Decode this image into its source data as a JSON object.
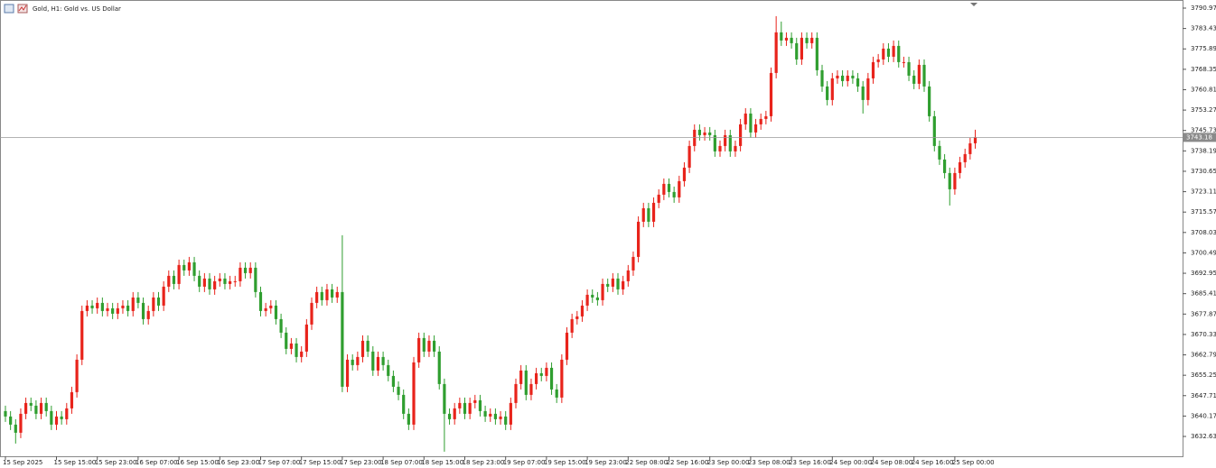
{
  "chart_data": {
    "type": "candlestick",
    "title": "Gold, H1:  Gold vs. US Dollar",
    "up_color": "#e8231b",
    "down_color": "#2f9e2f",
    "ylim": [
      3625.3,
      3793.97
    ],
    "yticks": [
      3790.97,
      3783.43,
      3775.89,
      3768.35,
      3760.81,
      3753.27,
      3745.73,
      3738.19,
      3730.65,
      3723.11,
      3715.57,
      3708.03,
      3700.49,
      3692.95,
      3685.41,
      3677.87,
      3670.33,
      3662.79,
      3655.25,
      3647.71,
      3640.17,
      3632.63
    ],
    "categories": [
      "15 Sep 2025",
      null,
      null,
      null,
      null,
      null,
      null,
      null,
      null,
      null,
      "15 Sep 15:00",
      null,
      null,
      null,
      null,
      null,
      null,
      null,
      "15 Sep 23:00",
      null,
      null,
      null,
      null,
      null,
      null,
      null,
      "16 Sep 07:00",
      null,
      null,
      null,
      null,
      null,
      null,
      null,
      "16 Sep 15:00",
      null,
      null,
      null,
      null,
      null,
      null,
      null,
      "16 Sep 23:00",
      null,
      null,
      null,
      null,
      null,
      null,
      null,
      "17 Sep 07:00",
      null,
      null,
      null,
      null,
      null,
      null,
      null,
      "17 Sep 15:00",
      null,
      null,
      null,
      null,
      null,
      null,
      null,
      "17 Sep 23:00",
      null,
      null,
      null,
      null,
      null,
      null,
      null,
      "18 Sep 07:00",
      null,
      null,
      null,
      null,
      null,
      null,
      null,
      "18 Sep 15:00",
      null,
      null,
      null,
      null,
      null,
      null,
      null,
      "18 Sep 23:00",
      null,
      null,
      null,
      null,
      null,
      null,
      null,
      "19 Sep 07:00",
      null,
      null,
      null,
      null,
      null,
      null,
      null,
      "19 Sep 15:00",
      null,
      null,
      null,
      null,
      null,
      null,
      null,
      "19 Sep 23:00",
      null,
      null,
      null,
      null,
      null,
      null,
      null,
      "22 Sep 08:00",
      null,
      null,
      null,
      null,
      null,
      null,
      null,
      "22 Sep 16:00",
      null,
      null,
      null,
      null,
      null,
      null,
      null,
      "23 Sep 00:00",
      null,
      null,
      null,
      null,
      null,
      null,
      null,
      "23 Sep 08:00",
      null,
      null,
      null,
      null,
      null,
      null,
      null,
      "23 Sep 16:00",
      null,
      null,
      null,
      null,
      null,
      null,
      null,
      "24 Sep 00:00",
      null,
      null,
      null,
      null,
      null,
      null,
      null,
      "24 Sep 08:00",
      null,
      null,
      null,
      null,
      null,
      null,
      null,
      "24 Sep 16:00",
      null,
      null,
      null,
      null,
      null,
      null,
      null,
      "25 Sep 00:00",
      null,
      null,
      null,
      null
    ],
    "open": [
      3642,
      3640,
      3637,
      3634,
      3641,
      3645,
      3644,
      3641,
      3645,
      3642,
      3637,
      3640,
      3639,
      3643,
      3649,
      3661,
      3679,
      3681,
      3680,
      3682,
      3679,
      3680,
      3678,
      3680,
      3681,
      3679,
      3684,
      3682,
      3676,
      3679,
      3684,
      3681,
      3688,
      3692,
      3689,
      3696,
      3694,
      3697,
      3692,
      3688,
      3691,
      3687,
      3690,
      3691,
      3689,
      3690,
      3690,
      3695,
      3693,
      3695,
      3686,
      3679,
      3680,
      3681,
      3676,
      3671,
      3665,
      3667,
      3662,
      3664,
      3674,
      3682,
      3686,
      3683,
      3687,
      3684,
      3686,
      3651,
      3661,
      3659,
      3662,
      3668,
      3664,
      3657,
      3662,
      3659,
      3655,
      3651,
      3648,
      3641,
      3637,
      3660,
      3669,
      3664,
      3668,
      3664,
      3652,
      3641,
      3639,
      3643,
      3645,
      3641,
      3645,
      3646,
      3642,
      3640,
      3641,
      3639,
      3640,
      3637,
      3645,
      3652,
      3657,
      3648,
      3652,
      3656,
      3655,
      3658,
      3650,
      3647,
      3661,
      3671,
      3676,
      3677,
      3681,
      3685,
      3684,
      3683,
      3689,
      3688,
      3691,
      3687,
      3690,
      3694,
      3699,
      3712,
      3717,
      3712,
      3719,
      3722,
      3726,
      3723,
      3721,
      3727,
      3732,
      3740,
      3746,
      3744,
      3745,
      3744,
      3738,
      3740,
      3744,
      3738,
      3740,
      3748,
      3752,
      3745,
      3748,
      3750,
      3751,
      3767,
      3782,
      3779,
      3780,
      3778,
      3772,
      3780,
      3778,
      3780,
      3768,
      3762,
      3757,
      3765,
      3766,
      3764,
      3766,
      3765,
      3762,
      3757,
      3765,
      3771,
      3772,
      3776,
      3773,
      3777,
      3771,
      3771,
      3766,
      3763,
      3770,
      3762,
      3751,
      3740,
      3735,
      3730,
      3724,
      3730,
      3734,
      3737,
      3741
    ],
    "high": [
      3644,
      3642,
      3639,
      3643,
      3647,
      3647,
      3646,
      3647,
      3647,
      3644,
      3642,
      3642,
      3645,
      3651,
      3663,
      3681,
      3683,
      3683,
      3684,
      3684,
      3682,
      3682,
      3682,
      3683,
      3683,
      3686,
      3686,
      3684,
      3681,
      3686,
      3686,
      3690,
      3694,
      3694,
      3698,
      3698,
      3699,
      3699,
      3694,
      3693,
      3693,
      3692,
      3693,
      3693,
      3692,
      3692,
      3697,
      3697,
      3697,
      3697,
      3688,
      3682,
      3683,
      3683,
      3678,
      3673,
      3669,
      3669,
      3666,
      3676,
      3684,
      3688,
      3688,
      3689,
      3689,
      3688,
      3707,
      3663,
      3663,
      3664,
      3670,
      3670,
      3666,
      3664,
      3664,
      3661,
      3657,
      3653,
      3650,
      3643,
      3662,
      3671,
      3671,
      3670,
      3670,
      3666,
      3654,
      3643,
      3645,
      3647,
      3647,
      3647,
      3648,
      3648,
      3644,
      3643,
      3643,
      3642,
      3642,
      3647,
      3654,
      3659,
      3659,
      3654,
      3658,
      3658,
      3660,
      3660,
      3652,
      3663,
      3673,
      3678,
      3679,
      3683,
      3687,
      3687,
      3686,
      3691,
      3691,
      3693,
      3693,
      3692,
      3696,
      3701,
      3714,
      3719,
      3719,
      3721,
      3724,
      3728,
      3728,
      3725,
      3729,
      3734,
      3742,
      3748,
      3748,
      3747,
      3747,
      3746,
      3742,
      3746,
      3746,
      3742,
      3750,
      3754,
      3754,
      3750,
      3752,
      3753,
      3769,
      3788,
      3786,
      3782,
      3782,
      3780,
      3782,
      3782,
      3782,
      3782,
      3770,
      3764,
      3767,
      3768,
      3768,
      3768,
      3768,
      3767,
      3764,
      3767,
      3773,
      3774,
      3778,
      3778,
      3779,
      3779,
      3773,
      3773,
      3768,
      3772,
      3772,
      3764,
      3753,
      3742,
      3737,
      3732,
      3732,
      3736,
      3739,
      3743,
      3746
    ],
    "low": [
      3638,
      3635,
      3630,
      3632,
      3639,
      3642,
      3639,
      3639,
      3640,
      3635,
      3635,
      3637,
      3637,
      3641,
      3647,
      3659,
      3677,
      3678,
      3678,
      3677,
      3677,
      3676,
      3676,
      3678,
      3677,
      3677,
      3680,
      3674,
      3674,
      3677,
      3679,
      3679,
      3686,
      3687,
      3687,
      3692,
      3692,
      3690,
      3686,
      3686,
      3685,
      3685,
      3688,
      3687,
      3687,
      3688,
      3688,
      3691,
      3691,
      3684,
      3677,
      3677,
      3678,
      3674,
      3669,
      3663,
      3663,
      3660,
      3660,
      3662,
      3672,
      3680,
      3681,
      3681,
      3682,
      3682,
      3649,
      3649,
      3657,
      3657,
      3660,
      3662,
      3655,
      3655,
      3657,
      3653,
      3649,
      3646,
      3639,
      3635,
      3635,
      3658,
      3662,
      3662,
      3662,
      3650,
      3627,
      3637,
      3637,
      3641,
      3639,
      3639,
      3643,
      3640,
      3638,
      3638,
      3637,
      3637,
      3635,
      3635,
      3643,
      3650,
      3646,
      3646,
      3650,
      3653,
      3653,
      3648,
      3645,
      3645,
      3659,
      3669,
      3674,
      3675,
      3679,
      3682,
      3681,
      3681,
      3686,
      3686,
      3685,
      3685,
      3688,
      3692,
      3697,
      3710,
      3710,
      3710,
      3717,
      3720,
      3721,
      3719,
      3719,
      3725,
      3730,
      3738,
      3742,
      3742,
      3742,
      3736,
      3736,
      3738,
      3736,
      3736,
      3738,
      3746,
      3743,
      3743,
      3746,
      3748,
      3749,
      3765,
      3777,
      3777,
      3776,
      3770,
      3770,
      3776,
      3776,
      3766,
      3760,
      3755,
      3755,
      3763,
      3762,
      3762,
      3763,
      3760,
      3752,
      3755,
      3763,
      3769,
      3770,
      3771,
      3771,
      3769,
      3769,
      3764,
      3761,
      3761,
      3760,
      3749,
      3738,
      3733,
      3728,
      3718,
      3722,
      3728,
      3732,
      3735,
      3739
    ],
    "close": [
      3640,
      3637,
      3634,
      3641,
      3645,
      3644,
      3641,
      3645,
      3642,
      3637,
      3640,
      3639,
      3643,
      3649,
      3661,
      3679,
      3681,
      3680,
      3682,
      3679,
      3680,
      3678,
      3680,
      3681,
      3679,
      3684,
      3682,
      3676,
      3679,
      3684,
      3681,
      3688,
      3692,
      3689,
      3696,
      3694,
      3697,
      3692,
      3688,
      3691,
      3687,
      3690,
      3691,
      3689,
      3690,
      3690,
      3695,
      3693,
      3695,
      3686,
      3679,
      3680,
      3681,
      3676,
      3671,
      3665,
      3667,
      3662,
      3664,
      3674,
      3682,
      3686,
      3683,
      3687,
      3684,
      3686,
      3651,
      3661,
      3659,
      3662,
      3668,
      3664,
      3657,
      3662,
      3659,
      3655,
      3651,
      3648,
      3641,
      3637,
      3660,
      3669,
      3664,
      3668,
      3664,
      3652,
      3641,
      3639,
      3643,
      3645,
      3641,
      3645,
      3646,
      3642,
      3640,
      3641,
      3639,
      3640,
      3637,
      3645,
      3652,
      3657,
      3648,
      3652,
      3656,
      3655,
      3658,
      3650,
      3647,
      3661,
      3671,
      3676,
      3677,
      3681,
      3685,
      3684,
      3683,
      3689,
      3688,
      3691,
      3687,
      3690,
      3694,
      3699,
      3712,
      3717,
      3712,
      3719,
      3722,
      3726,
      3723,
      3721,
      3727,
      3732,
      3740,
      3746,
      3744,
      3745,
      3744,
      3738,
      3740,
      3744,
      3738,
      3740,
      3748,
      3752,
      3745,
      3748,
      3750,
      3751,
      3767,
      3782,
      3779,
      3780,
      3778,
      3772,
      3780,
      3778,
      3780,
      3768,
      3762,
      3757,
      3765,
      3766,
      3764,
      3766,
      3765,
      3762,
      3757,
      3765,
      3771,
      3772,
      3776,
      3773,
      3777,
      3771,
      3771,
      3766,
      3763,
      3770,
      3762,
      3751,
      3740,
      3735,
      3730,
      3724,
      3730,
      3734,
      3737,
      3741,
      3743.18
    ]
  }
}
